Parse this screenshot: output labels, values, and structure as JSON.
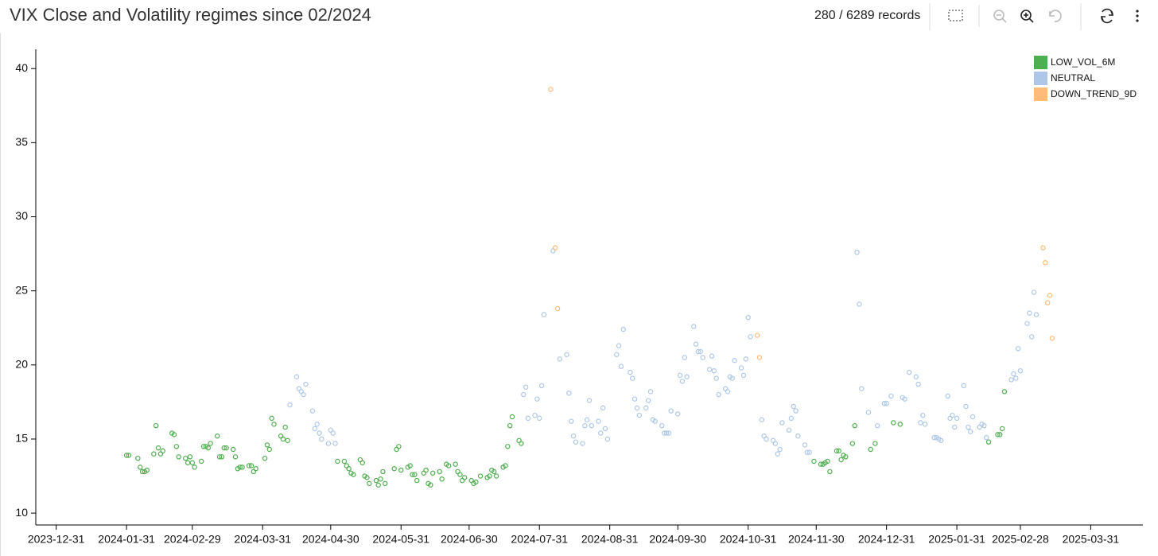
{
  "toolbar": {
    "records": "280 / 6289 records"
  },
  "chart_data": {
    "type": "scatter",
    "title": "VIX Close and Volatility regimes since 02/2024",
    "xlim": [
      "2023-12-22",
      "2025-04-23"
    ],
    "xticks": [
      "2023-12-31",
      "2024-01-31",
      "2024-02-29",
      "2024-03-31",
      "2024-04-30",
      "2024-05-31",
      "2024-06-30",
      "2024-07-31",
      "2024-08-31",
      "2024-09-30",
      "2024-10-31",
      "2024-11-30",
      "2024-12-31",
      "2025-01-31",
      "2025-02-28",
      "2025-03-31"
    ],
    "ylim": [
      9.2,
      41.3
    ],
    "yticks": [
      10,
      15,
      20,
      25,
      30,
      35,
      40
    ],
    "legend": "top-right",
    "grid": false,
    "series": [
      {
        "name": "LOW_VOL_6M",
        "color": "#4fae4f",
        "x": [
          "2024-01-31",
          "2024-02-01",
          "2024-02-05",
          "2024-02-06",
          "2024-02-07",
          "2024-02-08",
          "2024-02-09",
          "2024-02-12",
          "2024-02-13",
          "2024-02-14",
          "2024-02-15",
          "2024-02-16",
          "2024-02-20",
          "2024-02-21",
          "2024-02-22",
          "2024-02-23",
          "2024-02-26",
          "2024-02-27",
          "2024-02-28",
          "2024-02-29",
          "2024-03-01",
          "2024-03-04",
          "2024-03-05",
          "2024-03-06",
          "2024-03-07",
          "2024-03-08",
          "2024-03-11",
          "2024-03-12",
          "2024-03-13",
          "2024-03-14",
          "2024-03-15",
          "2024-03-18",
          "2024-03-19",
          "2024-03-20",
          "2024-03-21",
          "2024-03-22",
          "2024-03-25",
          "2024-03-26",
          "2024-03-27",
          "2024-03-28",
          "2024-04-01",
          "2024-04-02",
          "2024-04-03",
          "2024-04-04",
          "2024-04-05",
          "2024-04-08",
          "2024-04-09",
          "2024-04-10",
          "2024-04-11",
          "2024-05-03",
          "2024-05-06",
          "2024-05-07",
          "2024-05-08",
          "2024-05-09",
          "2024-05-10",
          "2024-05-13",
          "2024-05-14",
          "2024-05-15",
          "2024-05-16",
          "2024-05-17",
          "2024-05-20",
          "2024-05-21",
          "2024-05-22",
          "2024-05-23",
          "2024-05-24",
          "2024-05-28",
          "2024-05-29",
          "2024-05-30",
          "2024-05-31",
          "2024-06-03",
          "2024-06-04",
          "2024-06-05",
          "2024-06-06",
          "2024-06-07",
          "2024-06-10",
          "2024-06-11",
          "2024-06-12",
          "2024-06-13",
          "2024-06-14",
          "2024-06-17",
          "2024-06-18",
          "2024-06-20",
          "2024-06-21",
          "2024-06-24",
          "2024-06-25",
          "2024-06-26",
          "2024-06-27",
          "2024-06-28",
          "2024-07-01",
          "2024-07-02",
          "2024-07-03",
          "2024-07-05",
          "2024-07-08",
          "2024-07-09",
          "2024-07-10",
          "2024-07-11",
          "2024-07-12",
          "2024-07-15",
          "2024-07-16",
          "2024-07-17",
          "2024-07-18",
          "2024-07-19",
          "2024-07-22",
          "2024-07-23",
          "2024-11-29",
          "2024-12-02",
          "2024-12-03",
          "2024-12-04",
          "2024-12-05",
          "2024-12-06",
          "2024-12-09",
          "2024-12-10",
          "2024-12-11",
          "2024-12-12",
          "2024-12-13",
          "2024-12-16",
          "2024-12-17",
          "2024-12-24",
          "2024-12-26",
          "2025-01-03",
          "2025-01-06",
          "2025-02-14",
          "2025-02-18",
          "2025-02-19",
          "2025-02-20",
          "2025-02-21"
        ],
        "values": [
          13.9,
          13.9,
          13.7,
          13.1,
          12.8,
          12.8,
          12.9,
          14.0,
          15.9,
          14.4,
          14.0,
          14.2,
          15.4,
          15.3,
          14.5,
          13.8,
          13.7,
          13.4,
          13.8,
          13.4,
          13.1,
          13.5,
          14.5,
          14.5,
          14.4,
          14.7,
          15.2,
          13.8,
          13.8,
          14.4,
          14.4,
          14.3,
          13.8,
          13.0,
          13.1,
          13.1,
          13.2,
          13.2,
          12.8,
          13.0,
          13.7,
          14.6,
          14.3,
          16.4,
          16.0,
          15.2,
          15.0,
          15.8,
          14.9,
          13.5,
          13.5,
          13.2,
          13.0,
          12.7,
          12.6,
          13.6,
          13.4,
          12.5,
          12.4,
          12.0,
          12.2,
          11.9,
          12.3,
          12.8,
          12.0,
          13.0,
          14.3,
          14.5,
          12.9,
          13.1,
          13.2,
          12.6,
          12.6,
          12.2,
          12.7,
          12.9,
          12.0,
          11.9,
          12.7,
          12.8,
          12.3,
          13.3,
          13.2,
          13.3,
          12.8,
          12.6,
          12.2,
          12.4,
          12.2,
          12.0,
          12.1,
          12.5,
          12.4,
          12.5,
          12.9,
          12.8,
          12.5,
          13.1,
          13.2,
          14.5,
          15.9,
          16.5,
          14.9,
          14.7,
          13.5,
          13.3,
          13.3,
          13.4,
          13.5,
          12.8,
          14.2,
          14.2,
          13.6,
          13.9,
          13.8,
          14.7,
          15.9,
          14.3,
          14.7,
          16.1,
          16.0,
          14.8,
          15.3,
          15.3,
          15.7,
          18.2
        ]
      },
      {
        "name": "NEUTRAL",
        "color": "#aec7e8",
        "x": [
          "2024-04-12",
          "2024-04-15",
          "2024-04-16",
          "2024-04-17",
          "2024-04-18",
          "2024-04-19",
          "2024-04-22",
          "2024-04-23",
          "2024-04-24",
          "2024-04-25",
          "2024-04-26",
          "2024-04-29",
          "2024-04-30",
          "2024-05-01",
          "2024-05-02",
          "2024-07-24",
          "2024-07-25",
          "2024-07-26",
          "2024-07-29",
          "2024-07-30",
          "2024-07-31",
          "2024-08-01",
          "2024-08-02",
          "2024-08-06",
          "2024-08-09",
          "2024-08-12",
          "2024-08-13",
          "2024-08-14",
          "2024-08-15",
          "2024-08-16",
          "2024-08-19",
          "2024-08-20",
          "2024-08-21",
          "2024-08-22",
          "2024-08-23",
          "2024-08-26",
          "2024-08-27",
          "2024-08-28",
          "2024-08-29",
          "2024-08-30",
          "2024-09-03",
          "2024-09-04",
          "2024-09-05",
          "2024-09-06",
          "2024-09-09",
          "2024-09-10",
          "2024-09-11",
          "2024-09-12",
          "2024-09-13",
          "2024-09-16",
          "2024-09-17",
          "2024-09-18",
          "2024-09-19",
          "2024-09-20",
          "2024-09-23",
          "2024-09-24",
          "2024-09-25",
          "2024-09-26",
          "2024-09-27",
          "2024-09-30",
          "2024-10-01",
          "2024-10-02",
          "2024-10-03",
          "2024-10-04",
          "2024-10-07",
          "2024-10-08",
          "2024-10-09",
          "2024-10-10",
          "2024-10-11",
          "2024-10-14",
          "2024-10-15",
          "2024-10-16",
          "2024-10-17",
          "2024-10-18",
          "2024-10-21",
          "2024-10-22",
          "2024-10-23",
          "2024-10-24",
          "2024-10-25",
          "2024-10-28",
          "2024-10-29",
          "2024-10-30",
          "2024-10-31",
          "2024-11-01",
          "2024-11-06",
          "2024-11-07",
          "2024-11-08",
          "2024-11-11",
          "2024-11-12",
          "2024-11-13",
          "2024-11-14",
          "2024-11-15",
          "2024-11-18",
          "2024-11-19",
          "2024-11-20",
          "2024-11-21",
          "2024-11-22",
          "2024-11-25",
          "2024-11-26",
          "2024-11-27",
          "2024-12-18",
          "2024-12-19",
          "2024-12-20",
          "2024-12-23",
          "2024-12-27",
          "2024-12-30",
          "2024-12-31",
          "2025-01-02",
          "2025-01-07",
          "2025-01-08",
          "2025-01-10",
          "2025-01-13",
          "2025-01-14",
          "2025-01-15",
          "2025-01-16",
          "2025-01-17",
          "2025-01-21",
          "2025-01-22",
          "2025-01-23",
          "2025-01-24",
          "2025-01-27",
          "2025-01-28",
          "2025-01-29",
          "2025-01-30",
          "2025-01-31",
          "2025-02-03",
          "2025-02-04",
          "2025-02-05",
          "2025-02-06",
          "2025-02-07",
          "2025-02-10",
          "2025-02-11",
          "2025-02-12",
          "2025-02-13",
          "2025-02-24",
          "2025-02-25",
          "2025-02-26",
          "2025-02-27",
          "2025-02-28",
          "2025-03-03",
          "2025-03-04",
          "2025-03-05",
          "2025-03-06",
          "2025-03-07"
        ],
        "values": [
          17.3,
          19.2,
          18.4,
          18.2,
          18.0,
          18.7,
          16.9,
          15.7,
          16.0,
          15.4,
          15.0,
          14.7,
          15.6,
          15.4,
          14.7,
          18.0,
          18.5,
          16.4,
          16.6,
          17.7,
          16.4,
          18.6,
          23.4,
          27.7,
          20.4,
          20.7,
          18.1,
          16.2,
          15.2,
          14.8,
          14.7,
          15.9,
          16.3,
          17.6,
          15.9,
          16.2,
          15.4,
          17.1,
          15.7,
          15.0,
          20.7,
          21.3,
          19.9,
          22.4,
          19.5,
          19.1,
          17.7,
          17.1,
          16.6,
          17.1,
          17.6,
          18.2,
          16.3,
          16.2,
          15.9,
          15.4,
          15.4,
          15.4,
          16.9,
          16.7,
          19.3,
          18.9,
          20.5,
          19.2,
          22.6,
          21.4,
          20.9,
          20.9,
          20.5,
          19.7,
          20.6,
          19.6,
          19.1,
          18.0,
          18.4,
          18.2,
          19.2,
          19.1,
          20.3,
          19.8,
          19.3,
          20.4,
          23.2,
          21.9,
          16.3,
          15.2,
          15.0,
          14.9,
          14.7,
          14.0,
          14.3,
          16.1,
          15.6,
          16.4,
          17.2,
          16.9,
          15.2,
          14.6,
          14.1,
          14.1,
          27.6,
          24.1,
          18.4,
          16.8,
          15.9,
          17.4,
          17.4,
          17.9,
          17.8,
          17.7,
          19.5,
          19.2,
          18.7,
          16.1,
          16.6,
          16.0,
          15.1,
          15.1,
          15.0,
          14.9,
          17.9,
          16.4,
          16.6,
          15.8,
          16.4,
          18.6,
          17.2,
          15.8,
          15.5,
          16.5,
          15.8,
          16.0,
          15.9,
          15.1,
          19.0,
          19.4,
          19.1,
          21.1,
          19.6,
          22.8,
          23.5,
          21.9,
          24.9,
          23.4
        ]
      },
      {
        "name": "DOWN_TREND_9D",
        "color": "#ffbb78",
        "x": [
          "2024-08-05",
          "2024-08-07",
          "2024-08-08",
          "2024-11-04",
          "2024-11-05",
          "2025-03-10",
          "2025-03-11",
          "2025-03-12",
          "2025-03-13",
          "2025-03-14"
        ],
        "values": [
          38.6,
          27.9,
          23.8,
          22.0,
          20.5,
          27.9,
          26.9,
          24.2,
          24.7,
          21.8
        ]
      }
    ]
  }
}
